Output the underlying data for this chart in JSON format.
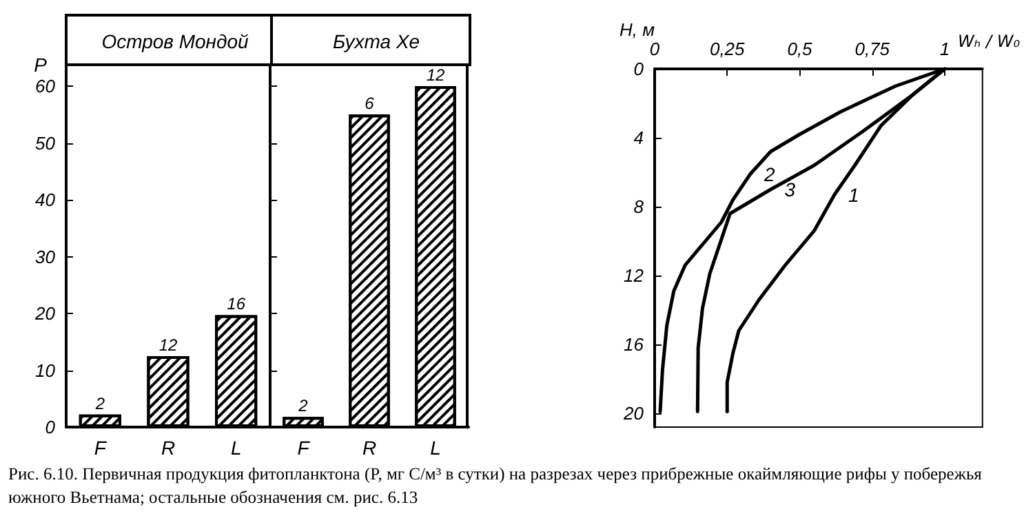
{
  "chart_data": [
    {
      "type": "bar",
      "title": "Остров Мондой",
      "ylabel": "P",
      "categories": [
        "F",
        "R",
        "L"
      ],
      "values": [
        2.2,
        12.5,
        19.7
      ],
      "color": "#ffffff",
      "ylim": [
        0,
        64
      ],
      "yticks": [
        0,
        10,
        20,
        30,
        40,
        50,
        60
      ],
      "grid": false,
      "annotations": [
        {
          "text": "2",
          "x": "F",
          "y": 2.2
        },
        {
          "text": "12",
          "x": "R",
          "y": 12.5
        },
        {
          "text": "16",
          "x": "L",
          "y": 19.7
        },
        "Рис. 6.10. Первичная продукция фитопланктона (P, мг C/м³ в сутки) на разрезах через прибрежные окаймляющие рифы у побережья южного Вьетнама; остальные обозначения см. рис. 6.13"
      ]
    },
    {
      "type": "bar",
      "title": "Бухта Хе",
      "categories": [
        "F",
        "R",
        "L"
      ],
      "values": [
        1.8,
        55,
        60
      ],
      "color": "#ffffff",
      "ylim": [
        0,
        64
      ],
      "yticks": [
        0,
        10,
        20,
        30,
        40,
        50,
        60
      ],
      "grid": false,
      "tick_labels": "x",
      "annotations": [
        {
          "text": "2",
          "x": "F",
          "y": 1.8
        },
        {
          "text": "6",
          "x": "R",
          "y": 55
        },
        {
          "text": "12",
          "x": "L",
          "y": 60
        }
      ]
    },
    {
      "type": "line",
      "xlabel": "Wₕ / W₀",
      "ylabel": "H, м",
      "xlim": [
        0,
        1.13
      ],
      "ylim": [
        20.8,
        0
      ],
      "xticks": [
        0,
        {
          "value": 0.25,
          "label": "0,25"
        },
        {
          "value": 0.5,
          "label": "0,5"
        },
        {
          "value": 0.75,
          "label": "0,75"
        },
        1
      ],
      "yticks": [
        0,
        4,
        8,
        12,
        16,
        20
      ],
      "grid": false,
      "marker": "none",
      "line_style": "solid",
      "series": [
        {
          "name": "1",
          "color": "#000000",
          "x": [
            1,
            0.89,
            0.78,
            0.69,
            0.62,
            0.55,
            0.45,
            0.36,
            0.29,
            0.27,
            0.25,
            0.25
          ],
          "values": [
            0,
            1.5,
            3.3,
            5.6,
            7.3,
            9.4,
            11.4,
            13.4,
            15.2,
            16.5,
            18.2,
            19.9
          ]
        },
        {
          "name": "2",
          "color": "#000000",
          "x": [
            1,
            0.83,
            0.64,
            0.5,
            0.4,
            0.33,
            0.27,
            0.23,
            0.17,
            0.105,
            0.066,
            0.042,
            0.027,
            0.019
          ],
          "values": [
            0,
            1,
            2.5,
            3.8,
            4.8,
            6.1,
            7.6,
            8.9,
            10.1,
            11.4,
            12.9,
            14.9,
            17.5,
            19.9
          ]
        },
        {
          "name": "3",
          "color": "#000000",
          "x": [
            1,
            0.89,
            0.72,
            0.55,
            0.4,
            0.26,
            0.23,
            0.19,
            0.165,
            0.15,
            0.148
          ],
          "values": [
            0,
            1.5,
            3.6,
            5.6,
            7,
            8.4,
            9.9,
            11.9,
            13.9,
            16.2,
            19.9
          ]
        }
      ]
    }
  ]
}
